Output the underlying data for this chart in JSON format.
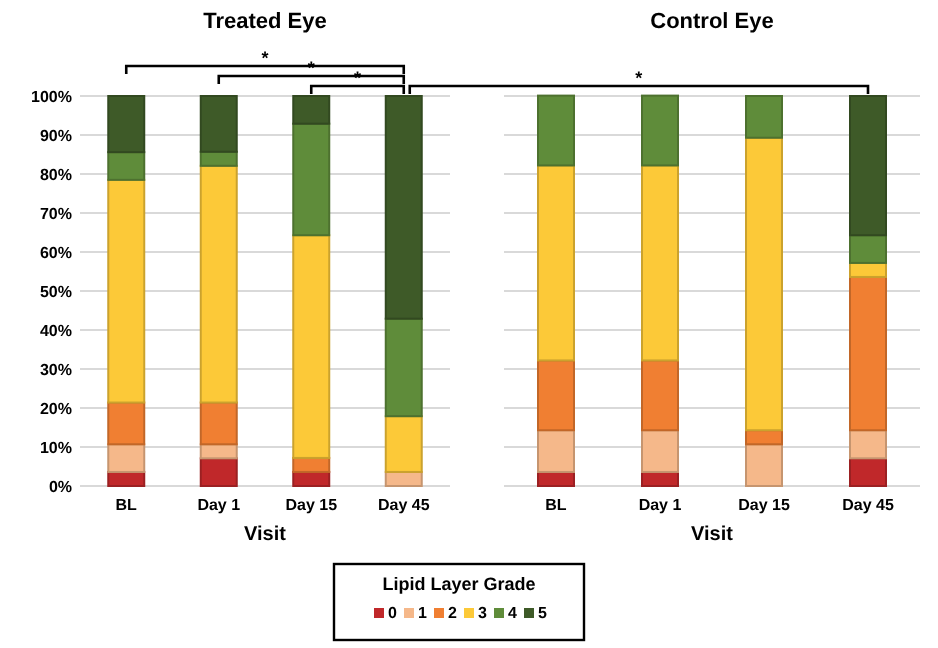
{
  "chart_data": [
    {
      "type": "bar",
      "stacked": true,
      "title": "Treated Eye",
      "xlabel": "Visit",
      "categories": [
        "BL",
        "Day 1",
        "Day 15",
        "Day 45"
      ],
      "ylim": [
        0,
        100
      ],
      "yticks": [
        {
          "value": 0,
          "label": "0%"
        },
        {
          "value": 10,
          "label": "10%"
        },
        {
          "value": 20,
          "label": "20%"
        },
        {
          "value": 30,
          "label": "30%"
        },
        {
          "value": 40,
          "label": "40%"
        },
        {
          "value": 50,
          "label": "50%"
        },
        {
          "value": 60,
          "label": "60%"
        },
        {
          "value": 70,
          "label": "70%"
        },
        {
          "value": 80,
          "label": "80%"
        },
        {
          "value": 90,
          "label": "90%"
        },
        {
          "value": 100,
          "label": "100%"
        }
      ],
      "grid": "y",
      "legend": "bottom",
      "legend_title": "Lipid Layer Grade",
      "annotations": [
        "*",
        "*",
        "*"
      ],
      "series": [
        {
          "name": "0",
          "color": "#c0282a",
          "values": [
            3.6,
            7.1,
            3.6,
            0
          ]
        },
        {
          "name": "1",
          "color": "#f5b88a",
          "values": [
            7.1,
            3.6,
            0,
            3.6
          ]
        },
        {
          "name": "2",
          "color": "#f07f32",
          "values": [
            10.7,
            10.7,
            3.6,
            0
          ]
        },
        {
          "name": "3",
          "color": "#fcc938",
          "values": [
            57.1,
            60.7,
            57.1,
            14.3
          ]
        },
        {
          "name": "4",
          "color": "#5f8c3a",
          "values": [
            7.1,
            3.6,
            28.6,
            25
          ]
        },
        {
          "name": "5",
          "color": "#3e5a28",
          "values": [
            14.4,
            14.3,
            7.1,
            57.1
          ]
        }
      ]
    },
    {
      "type": "bar",
      "stacked": true,
      "title": "Control Eye",
      "xlabel": "Visit",
      "categories": [
        "BL",
        "Day 1",
        "Day 15",
        "Day 45"
      ],
      "ylim": [
        0,
        100
      ],
      "yticks": [
        0,
        10,
        20,
        30,
        40,
        50,
        60,
        70,
        80,
        90,
        100
      ],
      "grid": "y",
      "tick_labels": "x",
      "annotations": [
        "*"
      ],
      "series": [
        {
          "color": "#c0282a",
          "values": [
            3.6,
            3.6,
            0,
            7.1
          ]
        },
        {
          "color": "#f5b88a",
          "values": [
            10.7,
            10.7,
            10.7,
            7.2
          ]
        },
        {
          "color": "#f07f32",
          "values": [
            17.9,
            17.9,
            3.6,
            39.3
          ]
        },
        {
          "color": "#fcc938",
          "values": [
            50,
            50,
            75,
            3.6
          ]
        },
        {
          "color": "#5f8c3a",
          "values": [
            17.9,
            17.9,
            10.7,
            7.1
          ]
        },
        {
          "color": "#3e5a28",
          "values": [
            0,
            0,
            0,
            35.7
          ]
        }
      ]
    }
  ]
}
